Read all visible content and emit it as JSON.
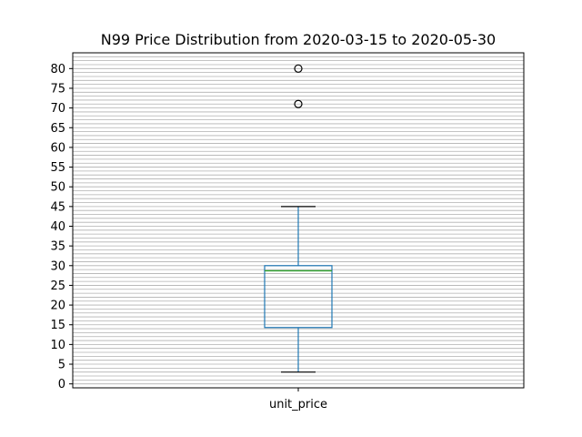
{
  "chart_data": {
    "type": "box",
    "title": "N99 Price Distribution from 2020-03-15 to 2020-05-30",
    "categories": [
      "unit_price"
    ],
    "xlabel": "",
    "ylabel": "",
    "ylim": [
      -1,
      84
    ],
    "yticks": [
      0,
      5,
      10,
      15,
      20,
      25,
      30,
      35,
      40,
      45,
      50,
      55,
      60,
      65,
      70,
      75,
      80
    ],
    "minor_grid_step": 1,
    "grid": true,
    "box": {
      "whisker_low": 3,
      "q1": 14.3,
      "median": 28.7,
      "q3": 30,
      "whisker_high": 45,
      "outliers": [
        71,
        80
      ]
    },
    "colors": {
      "box": "#1f77b4",
      "median": "#2ca02c",
      "whisker_cap": "#000000",
      "grid": "#b0b0b0"
    }
  }
}
